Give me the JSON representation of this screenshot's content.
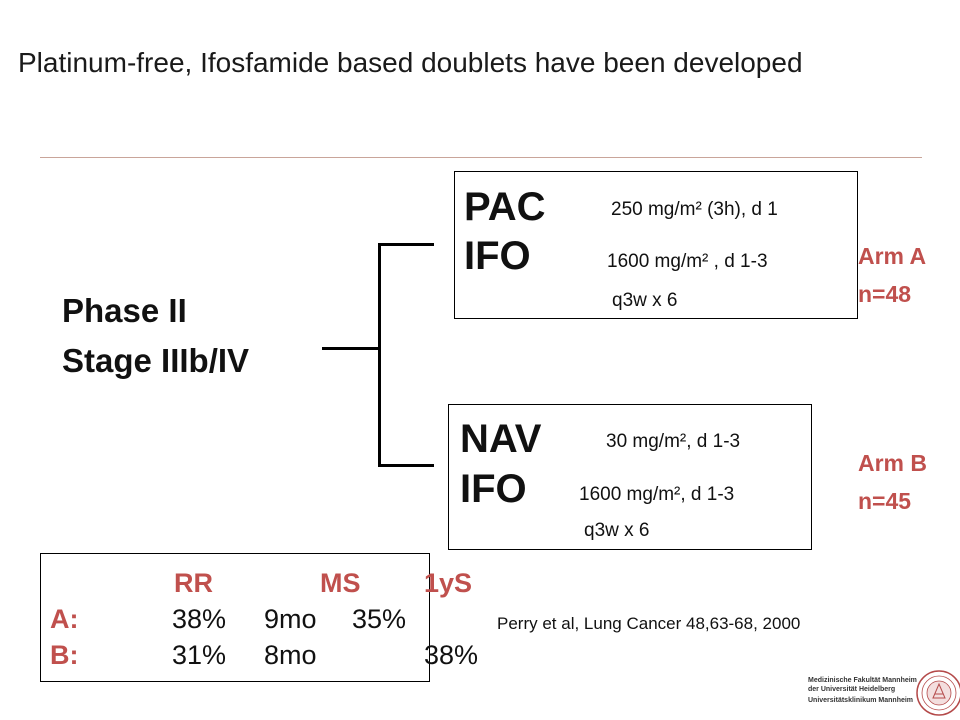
{
  "title": "Platinum-free, Ifosfamide based doublets have been developed",
  "study": {
    "line1": "Phase II",
    "line2": "Stage IIIb/IV"
  },
  "arm_a": {
    "drug1": "PAC",
    "dose1": "250 mg/m² (3h), d 1",
    "drug2": "IFO",
    "dose2": "1600 mg/m² , d 1-3",
    "schedule": "q3w x 6",
    "arm_label": "Arm A",
    "n": "n=48"
  },
  "arm_b": {
    "drug1": "NAV",
    "dose1": "30 mg/m², d 1-3",
    "drug2": "IFO",
    "dose2": "1600 mg/m², d 1-3",
    "schedule": "q3w x 6",
    "arm_label": "Arm B",
    "n": "n=45"
  },
  "results": {
    "headers": [
      "RR",
      "MS",
      "1yS"
    ],
    "rows": [
      {
        "label": "A:",
        "rr": "38%",
        "ms": "9mo",
        "os": "35%"
      },
      {
        "label": "B:",
        "rr": "31%",
        "ms": "8mo",
        "os": "38%"
      }
    ]
  },
  "citation": "Perry et al, Lung Cancer 48,63-68, 2000",
  "logo": {
    "line1": "Medizinische Fakultät Mannheim",
    "line2": "der Universität Heidelberg",
    "line3": "Universitätsklinikum Mannheim",
    "icon": "university-seal-icon"
  },
  "colors": {
    "accent": "#c0504d",
    "rule": "#c9a59a"
  }
}
